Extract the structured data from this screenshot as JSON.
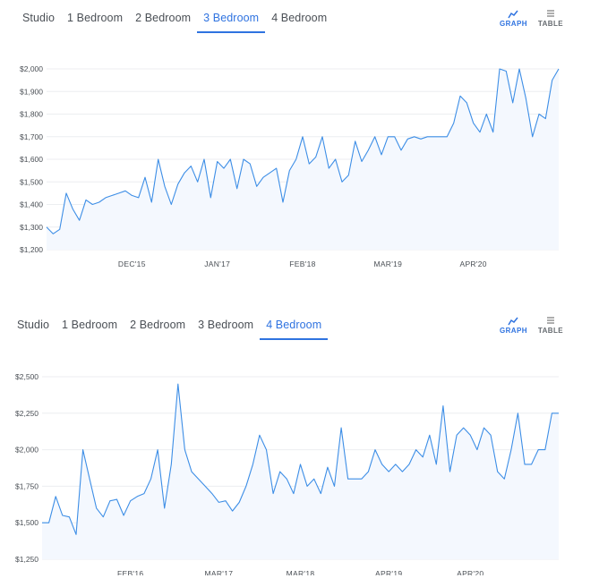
{
  "panels": [
    {
      "tabs": [
        "Studio",
        "1 Bedroom",
        "2 Bedroom",
        "3 Bedroom",
        "4 Bedroom"
      ],
      "active_tab": 3,
      "view_toggle": {
        "graph_label": "GRAPH",
        "table_label": "TABLE",
        "active": "graph"
      },
      "colors": {
        "accent": "#2f73e0",
        "line": "#3d8ee6",
        "fill": "#f4f8fe",
        "grid": "#eceef0"
      }
    },
    {
      "tabs": [
        "Studio",
        "1 Bedroom",
        "2 Bedroom",
        "3 Bedroom",
        "4 Bedroom"
      ],
      "active_tab": 4,
      "view_toggle": {
        "graph_label": "GRAPH",
        "table_label": "TABLE",
        "active": "graph"
      },
      "colors": {
        "accent": "#2f73e0",
        "line": "#3d8ee6",
        "fill": "#f4f8fe",
        "grid": "#eceef0"
      }
    }
  ],
  "chart_data": [
    {
      "type": "area",
      "title": "",
      "xlabel": "",
      "ylabel": "",
      "ylim": [
        1200,
        2000
      ],
      "yticks": [
        1200,
        1300,
        1400,
        1500,
        1600,
        1700,
        1800,
        1900,
        2000
      ],
      "ytick_labels": [
        "$1,200",
        "$1,300",
        "$1,400",
        "$1,500",
        "$1,600",
        "$1,700",
        "$1,800",
        "$1,900",
        "$2,000"
      ],
      "xlim": [
        "2014-11",
        "2021-05"
      ],
      "xticks": [
        "2015-12",
        "2017-01",
        "2018-02",
        "2019-03",
        "2020-04"
      ],
      "xtick_labels": [
        "DEC'15",
        "JAN'17",
        "FEB'18",
        "MAR'19",
        "APR'20"
      ],
      "grid": true,
      "series": [
        {
          "x": [
            "2014-11",
            "2014-12",
            "2015-01",
            "2015-02",
            "2015-03",
            "2015-04",
            "2015-05",
            "2015-06",
            "2015-07",
            "2015-08",
            "2015-09",
            "2015-10",
            "2015-11",
            "2015-12",
            "2016-01",
            "2016-02",
            "2016-03",
            "2016-04",
            "2016-05",
            "2016-06",
            "2016-07",
            "2016-08",
            "2016-09",
            "2016-10",
            "2016-11",
            "2016-12",
            "2017-01",
            "2017-02",
            "2017-03",
            "2017-04",
            "2017-05",
            "2017-06",
            "2017-07",
            "2017-08",
            "2017-09",
            "2017-10",
            "2017-11",
            "2017-12",
            "2018-01",
            "2018-02",
            "2018-03",
            "2018-04",
            "2018-05",
            "2018-06",
            "2018-07",
            "2018-08",
            "2018-09",
            "2018-10",
            "2018-11",
            "2018-12",
            "2019-01",
            "2019-02",
            "2019-03",
            "2019-04",
            "2019-05",
            "2019-06",
            "2019-07",
            "2019-08",
            "2019-09",
            "2019-10",
            "2019-11",
            "2019-12",
            "2020-01",
            "2020-02",
            "2020-03",
            "2020-04",
            "2020-05",
            "2020-06",
            "2020-07",
            "2020-08",
            "2020-09",
            "2020-10",
            "2020-11",
            "2020-12",
            "2021-01",
            "2021-02",
            "2021-03",
            "2021-04",
            "2021-05"
          ],
          "values": [
            1300,
            1270,
            1290,
            1450,
            1380,
            1330,
            1420,
            1400,
            1410,
            1430,
            1440,
            1450,
            1460,
            1440,
            1430,
            1520,
            1410,
            1600,
            1480,
            1400,
            1490,
            1540,
            1570,
            1500,
            1600,
            1430,
            1590,
            1560,
            1600,
            1470,
            1600,
            1580,
            1480,
            1520,
            1540,
            1560,
            1410,
            1550,
            1600,
            1700,
            1580,
            1610,
            1700,
            1560,
            1600,
            1500,
            1530,
            1680,
            1590,
            1640,
            1700,
            1620,
            1700,
            1700,
            1640,
            1690,
            1700,
            1690,
            1700,
            1700,
            1700,
            1700,
            1760,
            1880,
            1850,
            1760,
            1720,
            1800,
            1720,
            2000,
            1990,
            1850,
            2000,
            1870,
            1700,
            1800,
            1780,
            1950,
            2000
          ]
        }
      ]
    },
    {
      "type": "area",
      "title": "",
      "xlabel": "",
      "ylabel": "",
      "ylim": [
        1250,
        2500
      ],
      "yticks": [
        1250,
        1500,
        1750,
        2000,
        2250,
        2500
      ],
      "ytick_labels": [
        "$1,250",
        "$1,500",
        "$1,750",
        "$2,000",
        "$2,250",
        "$2,500"
      ],
      "xlim": [
        "2015-01",
        "2021-05"
      ],
      "xticks": [
        "2016-02",
        "2017-03",
        "2018-03",
        "2019-04",
        "2020-04"
      ],
      "xtick_labels": [
        "FEB'16",
        "MAR'17",
        "MAR'18",
        "APR'19",
        "APR'20"
      ],
      "grid": true,
      "series": [
        {
          "x": [
            "2015-01",
            "2015-02",
            "2015-03",
            "2015-04",
            "2015-05",
            "2015-06",
            "2015-07",
            "2015-08",
            "2015-09",
            "2015-10",
            "2015-11",
            "2015-12",
            "2016-01",
            "2016-02",
            "2016-03",
            "2016-04",
            "2016-05",
            "2016-06",
            "2016-07",
            "2016-08",
            "2016-09",
            "2016-10",
            "2016-11",
            "2016-12",
            "2017-01",
            "2017-02",
            "2017-03",
            "2017-04",
            "2017-05",
            "2017-06",
            "2017-07",
            "2017-08",
            "2017-09",
            "2017-10",
            "2017-11",
            "2017-12",
            "2018-01",
            "2018-02",
            "2018-03",
            "2018-04",
            "2018-05",
            "2018-06",
            "2018-07",
            "2018-08",
            "2018-09",
            "2018-10",
            "2018-11",
            "2018-12",
            "2019-01",
            "2019-02",
            "2019-03",
            "2019-04",
            "2019-05",
            "2019-06",
            "2019-07",
            "2019-08",
            "2019-09",
            "2019-10",
            "2019-11",
            "2019-12",
            "2020-01",
            "2020-02",
            "2020-03",
            "2020-04",
            "2020-05",
            "2020-06",
            "2020-07",
            "2020-08",
            "2020-09",
            "2020-10",
            "2020-11",
            "2020-12",
            "2021-01",
            "2021-02",
            "2021-03",
            "2021-04",
            "2021-05"
          ],
          "values": [
            1500,
            1500,
            1680,
            1550,
            1540,
            1420,
            2000,
            1800,
            1600,
            1540,
            1650,
            1660,
            1550,
            1650,
            1680,
            1700,
            1800,
            2000,
            1600,
            1900,
            2450,
            2000,
            1850,
            1800,
            1750,
            1700,
            1640,
            1650,
            1580,
            1640,
            1750,
            1900,
            2100,
            2000,
            1700,
            1850,
            1800,
            1700,
            1900,
            1750,
            1800,
            1700,
            1880,
            1750,
            2150,
            1800,
            1800,
            1800,
            1850,
            2000,
            1900,
            1850,
            1900,
            1850,
            1900,
            2000,
            1950,
            2100,
            1900,
            2300,
            1850,
            2100,
            2150,
            2100,
            2000,
            2150,
            2100,
            1850,
            1800,
            2000,
            2250,
            1900,
            1900,
            2000,
            2000,
            2250,
            2250
          ]
        }
      ]
    }
  ]
}
